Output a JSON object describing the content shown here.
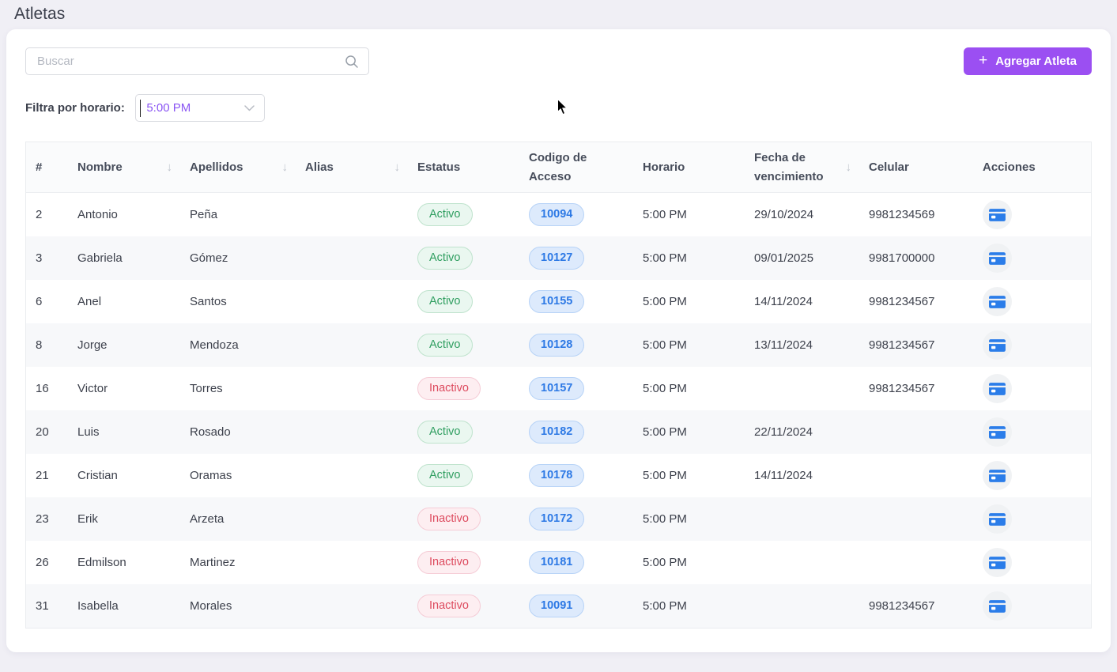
{
  "page": {
    "title": "Atletas"
  },
  "toolbar": {
    "search": {
      "placeholder": "Buscar",
      "icon": "search-icon"
    },
    "add_button": {
      "plus": "+",
      "label": "Agregar Atleta",
      "color": "#9b4ff2"
    }
  },
  "filter": {
    "label": "Filtra por horario:",
    "value": "5:00 PM"
  },
  "table": {
    "sort_icon": "↓",
    "columns": [
      {
        "label": "#",
        "sortable": false
      },
      {
        "label": "Nombre",
        "sortable": true
      },
      {
        "label": "Apellidos",
        "sortable": true
      },
      {
        "label": "Alias",
        "sortable": true
      },
      {
        "label": "Estatus",
        "sortable": false
      },
      {
        "label": "Codigo de Acceso",
        "sortable": false
      },
      {
        "label": "Horario",
        "sortable": false
      },
      {
        "label": "Fecha de vencimiento",
        "sortable": true
      },
      {
        "label": "Celular",
        "sortable": false
      },
      {
        "label": "Acciones",
        "sortable": false
      }
    ],
    "rows": [
      {
        "num": "2",
        "nombre": "Antonio",
        "apellidos": "Peña",
        "alias": "",
        "estatus": "Activo",
        "codigo": "10094",
        "horario": "5:00 PM",
        "fecha": "29/10/2024",
        "celular": "9981234569"
      },
      {
        "num": "3",
        "nombre": "Gabriela",
        "apellidos": "Gómez",
        "alias": "",
        "estatus": "Activo",
        "codigo": "10127",
        "horario": "5:00 PM",
        "fecha": "09/01/2025",
        "celular": "9981700000"
      },
      {
        "num": "6",
        "nombre": "Anel",
        "apellidos": "Santos",
        "alias": "",
        "estatus": "Activo",
        "codigo": "10155",
        "horario": "5:00 PM",
        "fecha": "14/11/2024",
        "celular": "9981234567"
      },
      {
        "num": "8",
        "nombre": "Jorge",
        "apellidos": "Mendoza",
        "alias": "",
        "estatus": "Activo",
        "codigo": "10128",
        "horario": "5:00 PM",
        "fecha": "13/11/2024",
        "celular": "9981234567"
      },
      {
        "num": "16",
        "nombre": "Victor",
        "apellidos": "Torres",
        "alias": "",
        "estatus": "Inactivo",
        "codigo": "10157",
        "horario": "5:00 PM",
        "fecha": "",
        "celular": "9981234567"
      },
      {
        "num": "20",
        "nombre": "Luis",
        "apellidos": "Rosado",
        "alias": "",
        "estatus": "Activo",
        "codigo": "10182",
        "horario": "5:00 PM",
        "fecha": "22/11/2024",
        "celular": ""
      },
      {
        "num": "21",
        "nombre": "Cristian",
        "apellidos": "Oramas",
        "alias": "",
        "estatus": "Activo",
        "codigo": "10178",
        "horario": "5:00 PM",
        "fecha": "14/11/2024",
        "celular": ""
      },
      {
        "num": "23",
        "nombre": "Erik",
        "apellidos": "Arzeta",
        "alias": "",
        "estatus": "Inactivo",
        "codigo": "10172",
        "horario": "5:00 PM",
        "fecha": "",
        "celular": ""
      },
      {
        "num": "26",
        "nombre": "Edmilson",
        "apellidos": "Martinez",
        "alias": "",
        "estatus": "Inactivo",
        "codigo": "10181",
        "horario": "5:00 PM",
        "fecha": "",
        "celular": ""
      },
      {
        "num": "31",
        "nombre": "Isabella",
        "apellidos": "Morales",
        "alias": "",
        "estatus": "Inactivo",
        "codigo": "10091",
        "horario": "5:00 PM",
        "fecha": "",
        "celular": "9981234567"
      }
    ]
  },
  "colors": {
    "accent_purple": "#9b4ff2",
    "select_value_purple": "#8a55f3",
    "status_active_green": "#2f9e60",
    "status_inactive_red": "#dd4a5e",
    "access_code_blue": "#2d79e5",
    "action_icon_blue": "#2b7de9",
    "page_background": "#f0eff5"
  }
}
